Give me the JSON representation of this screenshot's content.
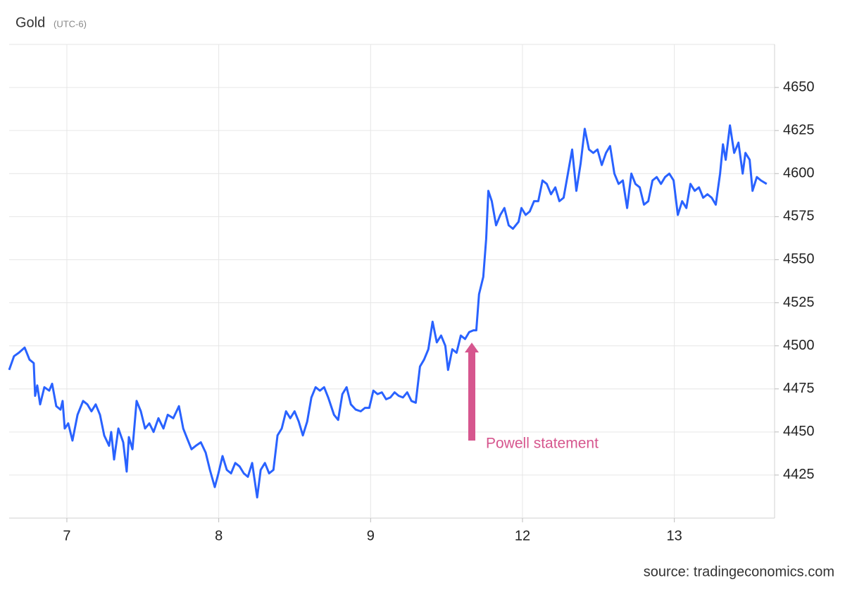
{
  "chart_data": {
    "type": "line",
    "title": "Gold",
    "subtitle": "(UTC-6)",
    "source": "source: tradingeconomics.com",
    "annotations": [
      {
        "text": "Powell statement",
        "color": "#d6568e"
      }
    ],
    "grid": true,
    "xlim": [
      0.62,
      5.66
    ],
    "xticks": [
      {
        "value": 1,
        "label": "7"
      },
      {
        "value": 2,
        "label": "8"
      },
      {
        "value": 3,
        "label": "9"
      },
      {
        "value": 4,
        "label": "12"
      },
      {
        "value": 5,
        "label": "13"
      }
    ],
    "ylim": [
      4400,
      4675
    ],
    "yticks": [
      4425,
      4450,
      4475,
      4500,
      4525,
      4550,
      4575,
      4600,
      4625,
      4650
    ],
    "x": [
      0.62,
      0.652,
      0.684,
      0.722,
      0.754,
      0.782,
      0.791,
      0.805,
      0.824,
      0.852,
      0.884,
      0.903,
      0.93,
      0.958,
      0.972,
      0.986,
      1.009,
      1.037,
      1.07,
      1.107,
      1.135,
      1.162,
      1.19,
      1.218,
      1.246,
      1.278,
      1.292,
      1.311,
      1.339,
      1.371,
      1.394,
      1.408,
      1.432,
      1.459,
      1.487,
      1.515,
      1.543,
      1.571,
      1.603,
      1.636,
      1.664,
      1.701,
      1.738,
      1.766,
      1.793,
      1.821,
      1.849,
      1.882,
      1.914,
      1.942,
      1.974,
      1.998,
      2.025,
      2.053,
      2.081,
      2.109,
      2.137,
      2.165,
      2.192,
      2.22,
      2.253,
      2.276,
      2.304,
      2.332,
      2.36,
      2.387,
      2.415,
      2.443,
      2.471,
      2.499,
      2.527,
      2.554,
      2.582,
      2.61,
      2.638,
      2.666,
      2.694,
      2.721,
      2.759,
      2.786,
      2.814,
      2.842,
      2.87,
      2.902,
      2.935,
      2.963,
      2.991,
      3.018,
      3.046,
      3.074,
      3.102,
      3.13,
      3.158,
      3.185,
      3.213,
      3.241,
      3.269,
      3.297,
      3.325,
      3.352,
      3.38,
      3.408,
      3.436,
      3.464,
      3.492,
      3.51,
      3.538,
      3.566,
      3.594,
      3.622,
      3.649,
      3.677,
      3.696,
      3.714,
      3.742,
      3.761,
      3.775,
      3.798,
      3.826,
      3.854,
      3.881,
      3.909,
      3.937,
      3.974,
      3.993,
      4.021,
      4.048,
      4.076,
      4.104,
      4.132,
      4.16,
      4.188,
      4.216,
      4.243,
      4.271,
      4.299,
      4.327,
      4.355,
      4.383,
      4.41,
      4.438,
      4.466,
      4.494,
      4.522,
      4.55,
      4.577,
      4.605,
      4.633,
      4.661,
      4.689,
      4.717,
      4.744,
      4.772,
      4.8,
      4.828,
      4.856,
      4.884,
      4.912,
      4.939,
      4.967,
      4.995,
      5.023,
      5.051,
      5.079,
      5.106,
      5.134,
      5.162,
      5.19,
      5.218,
      5.246,
      5.273,
      5.301,
      5.32,
      5.338,
      5.366,
      5.394,
      5.422,
      5.45,
      5.468,
      5.496,
      5.515,
      5.543,
      5.57,
      5.608
    ],
    "series": [
      {
        "name": "Gold",
        "color": "#2962ff",
        "values": [
          4486,
          4494,
          4496,
          4499,
          4492,
          4490,
          4471,
          4477,
          4466,
          4476,
          4474,
          4478,
          4465,
          4463,
          4468,
          4452,
          4455,
          4445,
          4460,
          4468,
          4466,
          4462,
          4466,
          4460,
          4448,
          4442,
          4450,
          4434,
          4452,
          4444,
          4427,
          4447,
          4440,
          4468,
          4462,
          4452,
          4455,
          4450,
          4458,
          4452,
          4460,
          4458,
          4465,
          4452,
          4446,
          4440,
          4442,
          4444,
          4438,
          4428,
          4418,
          4426,
          4436,
          4428,
          4426,
          4432,
          4430,
          4426,
          4424,
          4432,
          4412,
          4428,
          4432,
          4426,
          4428,
          4448,
          4452,
          4462,
          4458,
          4462,
          4456,
          4448,
          4456,
          4470,
          4476,
          4474,
          4476,
          4470,
          4460,
          4457,
          4472,
          4476,
          4466,
          4463,
          4462,
          4464,
          4464,
          4474,
          4472,
          4473,
          4469,
          4470,
          4473,
          4471,
          4470,
          4473,
          4468,
          4467,
          4488,
          4492,
          4498,
          4514,
          4502,
          4506,
          4500,
          4486,
          4498,
          4496,
          4506,
          4504,
          4508,
          4509,
          4509,
          4530,
          4540,
          4562,
          4590,
          4584,
          4570,
          4576,
          4580,
          4570,
          4568,
          4572,
          4580,
          4576,
          4578,
          4584,
          4584,
          4596,
          4594,
          4588,
          4592,
          4584,
          4586,
          4600,
          4614,
          4590,
          4606,
          4626,
          4614,
          4612,
          4614,
          4605,
          4612,
          4616,
          4600,
          4594,
          4596,
          4580,
          4600,
          4594,
          4592,
          4582,
          4584,
          4596,
          4598,
          4594,
          4598,
          4600,
          4596,
          4576,
          4584,
          4580,
          4594,
          4590,
          4592,
          4586,
          4588,
          4586,
          4582,
          4600,
          4617,
          4608,
          4628,
          4612,
          4618,
          4600,
          4612,
          4608,
          4590,
          4598,
          4596,
          4594
        ]
      }
    ]
  }
}
